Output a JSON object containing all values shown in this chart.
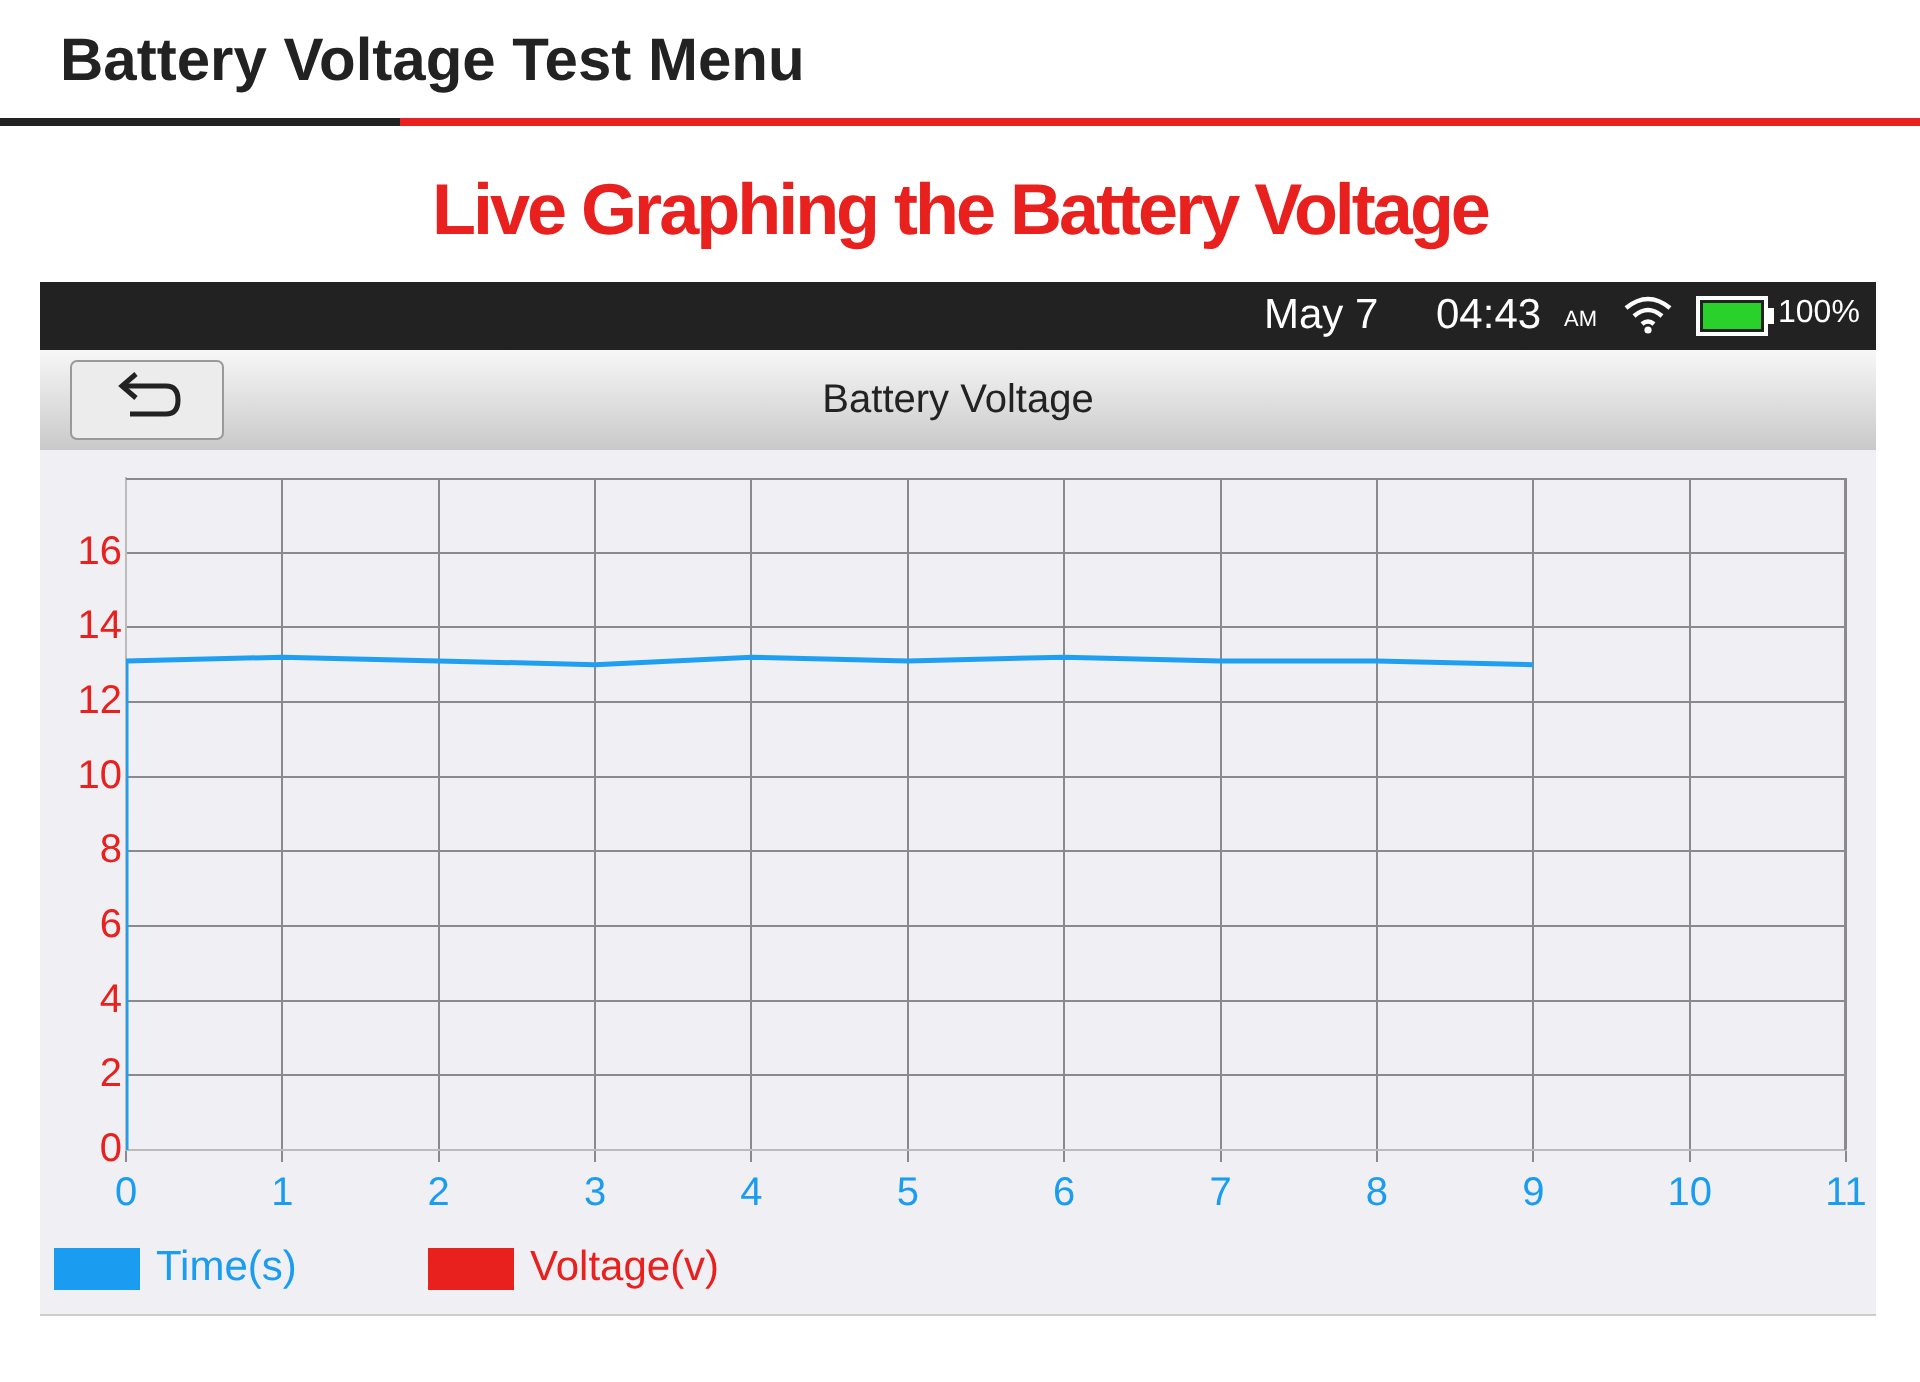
{
  "chart_data": {
    "type": "line",
    "title": "Live Graphing the Battery Voltage",
    "subtitle": "Battery Voltage",
    "annotations": [
      "Battery Voltage Test Menu",
      "May 7",
      "04:43",
      "AM",
      "100%",
      "Time(s)",
      "Voltage(v)"
    ],
    "x": [
      0,
      0,
      1,
      2,
      3,
      4,
      5,
      6,
      7,
      8,
      9
    ],
    "series": [
      {
        "color": "#1e9ff2",
        "values": [
          0,
          13.1,
          13.2,
          13.1,
          13.0,
          13.2,
          13.1,
          13.2,
          13.1,
          13.1,
          13.0
        ]
      }
    ],
    "xlim": [
      0,
      11
    ],
    "xticks": [
      0,
      1,
      2,
      3,
      4,
      5,
      6,
      7,
      8,
      9,
      10,
      11
    ],
    "ylim": [
      0,
      18
    ],
    "yticks": [
      0,
      2,
      4,
      6,
      8,
      10,
      12,
      14,
      16
    ],
    "grid": true,
    "marker": "none"
  }
}
